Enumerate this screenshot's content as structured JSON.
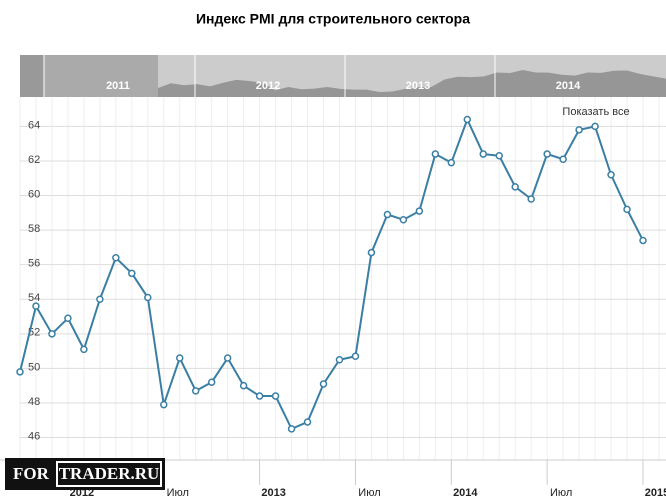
{
  "chart_data": {
    "type": "line",
    "title": "Индекс PMI для строительного сектора",
    "categories": [
      null,
      null,
      null,
      "2012",
      null,
      null,
      null,
      null,
      null,
      "Июл",
      null,
      null,
      null,
      null,
      null,
      "2013",
      null,
      null,
      null,
      null,
      null,
      "Июл",
      null,
      null,
      null,
      null,
      null,
      "2014",
      null,
      null,
      null,
      null,
      null,
      "Июл",
      null,
      null,
      null,
      null,
      null,
      "2015"
    ],
    "series": [
      {
        "color": "#3a7fa3",
        "values": [
          49.8,
          53.6,
          52.0,
          52.9,
          51.1,
          54.0,
          56.4,
          55.5,
          54.1,
          47.9,
          50.6,
          48.7,
          49.2,
          50.6,
          49.0,
          48.4,
          48.4,
          46.5,
          46.9,
          49.1,
          50.5,
          50.7,
          56.7,
          58.9,
          58.6,
          59.1,
          62.4,
          61.9,
          64.4,
          62.4,
          62.3,
          60.5,
          59.8,
          62.4,
          62.1,
          63.8,
          64.0,
          61.2,
          59.2,
          57.4
        ]
      }
    ],
    "ylim": [
      44.7,
      65.7
    ],
    "yticks": [
      46,
      48,
      50,
      52,
      54,
      56,
      58,
      60,
      62,
      64
    ],
    "grid": true,
    "navigator_labels": [
      "2011",
      "2012",
      "2013",
      "2014"
    ],
    "reset_button": "Показать все",
    "watermark": [
      "FOR",
      "TRADER.RU"
    ]
  }
}
